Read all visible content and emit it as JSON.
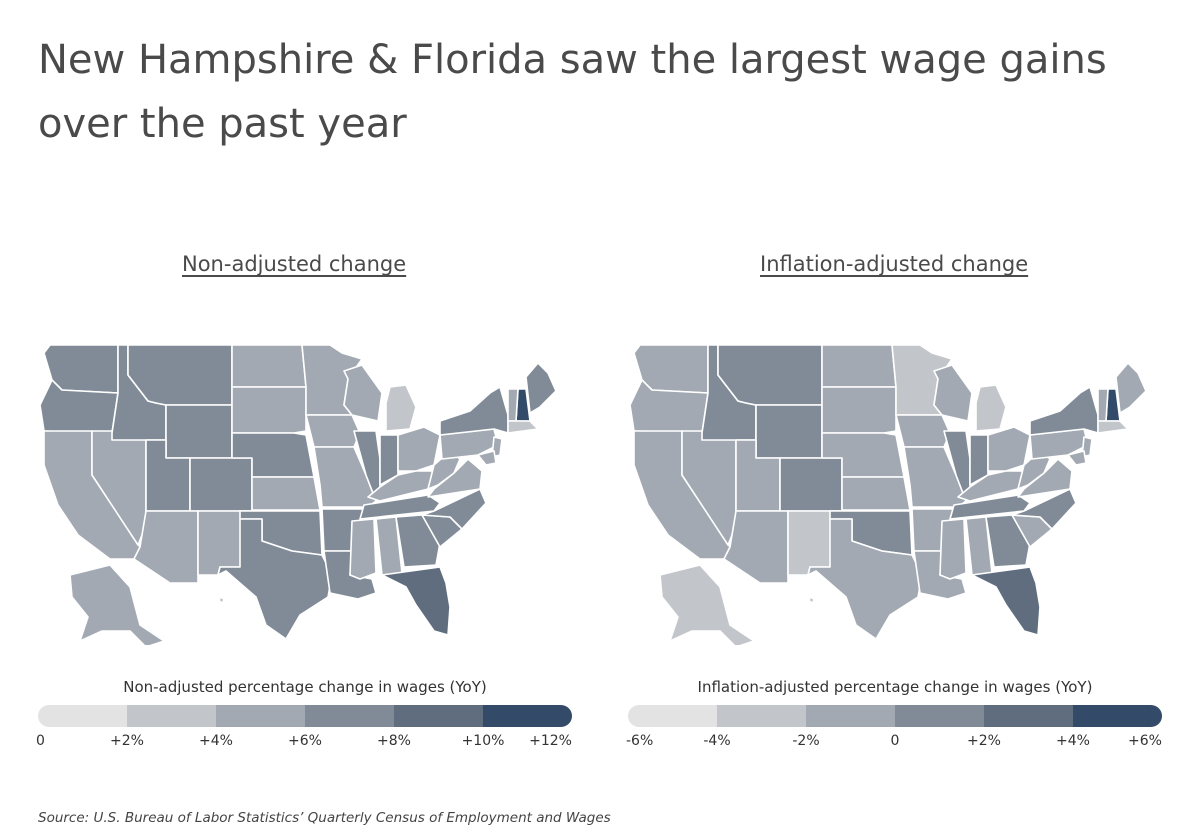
{
  "title": "New Hampshire & Florida saw the largest wage gains over the past year",
  "source": "Source:  U.S. Bureau of Labor Statistics’ Quarterly Census of Employment and Wages",
  "colors": [
    "#e3e3e3",
    "#c2c6cb",
    "#a2a9b2",
    "#818b98",
    "#5f6d7f",
    "#334b69"
  ],
  "maps": [
    {
      "title": "Non-adjusted change",
      "legend_title": "Non-adjusted percentage change in wages (YoY)",
      "ticks": [
        "0",
        "+2%",
        "+4%",
        "+6%",
        "+8%",
        "+10%",
        "+12%"
      ],
      "bins": {
        "WA": 3,
        "OR": 3,
        "CA": 2,
        "NV": 2,
        "ID": 3,
        "MT": 3,
        "WY": 3,
        "UT": 3,
        "CO": 3,
        "AZ": 2,
        "NM": 2,
        "ND": 2,
        "SD": 2,
        "NE": 3,
        "KS": 2,
        "OK": 3,
        "TX": 3,
        "MN": 2,
        "IA": 2,
        "MO": 2,
        "AR": 3,
        "LA": 3,
        "WI": 2,
        "IL": 3,
        "MI": 1,
        "IN": 3,
        "OH": 2,
        "KY": 2,
        "TN": 3,
        "MS": 2,
        "AL": 2,
        "GA": 3,
        "FL": 4,
        "SC": 3,
        "NC": 3,
        "VA": 2,
        "WV": 2,
        "PA": 2,
        "NY": 3,
        "ME": 3,
        "NH": 5,
        "VT": 2,
        "MA": 1,
        "NJ": 2,
        "MD": 2,
        "AK": 2,
        "HI": 1
      }
    },
    {
      "title": "Inflation-adjusted change",
      "legend_title": "Inflation-adjusted percentage change in wages (YoY)",
      "ticks": [
        "-6%",
        "-4%",
        "-2%",
        "0",
        "+2%",
        "+4%",
        "+6%"
      ],
      "bins": {
        "WA": 2,
        "OR": 2,
        "CA": 2,
        "NV": 2,
        "ID": 3,
        "MT": 3,
        "WY": 3,
        "UT": 2,
        "CO": 3,
        "AZ": 2,
        "NM": 1,
        "ND": 2,
        "SD": 2,
        "NE": 2,
        "KS": 2,
        "OK": 3,
        "TX": 2,
        "MN": 1,
        "IA": 2,
        "MO": 2,
        "AR": 2,
        "LA": 2,
        "WI": 2,
        "IL": 3,
        "MI": 1,
        "IN": 3,
        "OH": 2,
        "KY": 2,
        "TN": 3,
        "MS": 2,
        "AL": 2,
        "GA": 3,
        "FL": 4,
        "SC": 2,
        "NC": 3,
        "VA": 2,
        "WV": 2,
        "PA": 2,
        "NY": 3,
        "ME": 2,
        "NH": 5,
        "VT": 2,
        "MA": 1,
        "NJ": 2,
        "MD": 2,
        "AK": 1,
        "HI": 1
      }
    }
  ]
}
